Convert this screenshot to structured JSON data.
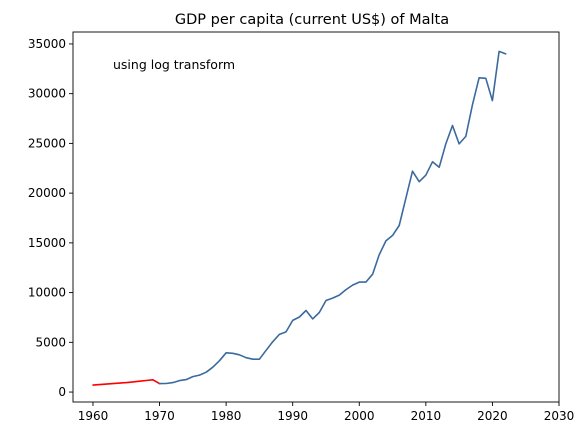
{
  "chart_data": {
    "type": "line",
    "title": "GDP per capita (current US$) of Malta",
    "annotation": "using log transform",
    "xlabel": "",
    "ylabel": "",
    "xlim": [
      1957,
      2030
    ],
    "ylim": [
      -1000,
      36200
    ],
    "xticks": [
      1960,
      1970,
      1980,
      1990,
      2000,
      2010,
      2020,
      2030
    ],
    "yticks": [
      0,
      5000,
      10000,
      15000,
      20000,
      25000,
      30000,
      35000
    ],
    "grid": false,
    "series": [
      {
        "color": "#ff0000",
        "x": [
          1960,
          1961,
          1962,
          1963,
          1964,
          1965,
          1966,
          1967,
          1968,
          1969,
          1970
        ],
        "y": [
          700,
          750,
          800,
          850,
          900,
          950,
          1020,
          1090,
          1160,
          1230,
          850
        ]
      },
      {
        "color": "#3b6a9e",
        "x": [
          1970,
          1971,
          1972,
          1973,
          1974,
          1975,
          1976,
          1977,
          1978,
          1979,
          1980,
          1981,
          1982,
          1983,
          1984,
          1985,
          1986,
          1987,
          1988,
          1989,
          1990,
          1991,
          1992,
          1993,
          1994,
          1995,
          1996,
          1997,
          1998,
          1999,
          2000,
          2001,
          2002,
          2003,
          2004,
          2005,
          2006,
          2007,
          2008,
          2009,
          2010,
          2011,
          2012,
          2013,
          2014,
          2015,
          2016,
          2017,
          2018,
          2019,
          2020,
          2021,
          2022
        ],
        "y": [
          850,
          860,
          950,
          1150,
          1250,
          1550,
          1700,
          2000,
          2500,
          3150,
          3950,
          3900,
          3750,
          3450,
          3300,
          3300,
          4200,
          5050,
          5800,
          6050,
          7200,
          7550,
          8200,
          7350,
          8000,
          9200,
          9450,
          9750,
          10300,
          10750,
          11050,
          11050,
          11850,
          13800,
          15200,
          15750,
          16750,
          19500,
          22200,
          21150,
          21800,
          23150,
          22600,
          24950,
          26800,
          24950,
          25700,
          28900,
          31600,
          31550,
          29300,
          34250,
          34000
        ]
      }
    ]
  }
}
